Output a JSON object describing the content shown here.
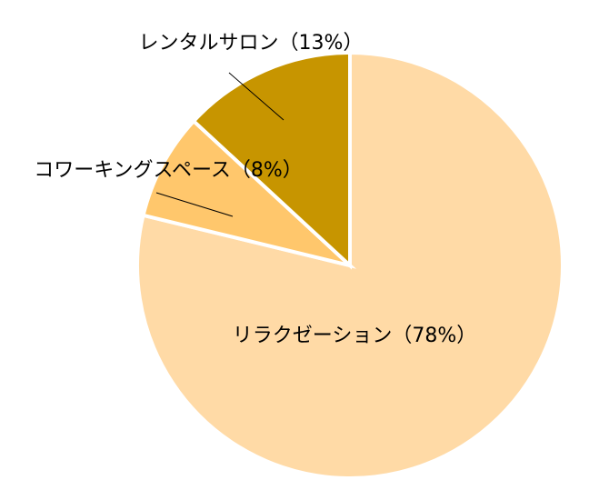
{
  "chart_data": {
    "type": "pie",
    "values": [
      78,
      8,
      13
    ],
    "value_labels": [
      "リラクゼーション（78%）",
      "コワーキングスペース（8%）",
      "レンタルサロン（13%）"
    ],
    "colors": [
      "#ffdaa6",
      "#ffc76c",
      "#c79500"
    ]
  }
}
